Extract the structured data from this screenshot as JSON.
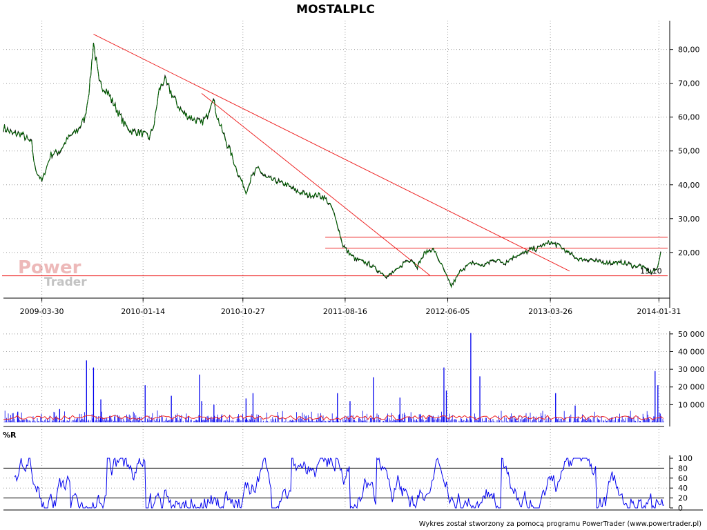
{
  "chart_data": [
    {
      "type": "line",
      "panel": "price",
      "title": "MOSTALPLC",
      "x_tick_labels": [
        "2009-03-30",
        "2010-01-14",
        "2010-10-27",
        "2011-08-16",
        "2012-06-05",
        "2013-03-26",
        "2014-01-31"
      ],
      "y_ticks": [
        20,
        30,
        40,
        50,
        60,
        70,
        80
      ],
      "y_tick_labels": [
        "20,00",
        "30,00",
        "40,00",
        "50,00",
        "60,00",
        "70,00",
        "80,00"
      ],
      "ylim": [
        6.5,
        88.5
      ],
      "xlim": [
        "2008-12-10",
        "2014-02-25"
      ],
      "series": [
        {
          "color": "#006400",
          "x": [
            "2008-12-10",
            "2009-01-05",
            "2009-02-01",
            "2009-03-01",
            "2009-03-10",
            "2009-03-30",
            "2009-04-25",
            "2009-05-20",
            "2009-06-15",
            "2009-07-10",
            "2009-08-01",
            "2009-08-15",
            "2009-08-25",
            "2009-09-10",
            "2009-10-01",
            "2009-11-01",
            "2009-11-20",
            "2009-12-10",
            "2010-01-14",
            "2010-02-01",
            "2010-02-15",
            "2010-03-01",
            "2010-03-15",
            "2010-04-01",
            "2010-04-20",
            "2010-05-10",
            "2010-06-01",
            "2010-06-15",
            "2010-06-28",
            "2010-07-15",
            "2010-08-01",
            "2010-08-15",
            "2010-09-01",
            "2010-09-20",
            "2010-10-15",
            "2010-11-05",
            "2010-11-20",
            "2010-12-10",
            "2011-01-01",
            "2011-02-01",
            "2011-03-01",
            "2011-04-01",
            "2011-05-01",
            "2011-06-01",
            "2011-06-20",
            "2011-07-10",
            "2011-07-25",
            "2011-08-10",
            "2011-08-25",
            "2011-09-15",
            "2011-10-15",
            "2011-11-15",
            "2011-12-15",
            "2012-01-15",
            "2012-02-01",
            "2012-02-20",
            "2012-03-10",
            "2012-04-01",
            "2012-04-25",
            "2012-05-15",
            "2012-06-01",
            "2012-06-15",
            "2012-07-15",
            "2012-08-15",
            "2012-09-15",
            "2012-10-15",
            "2012-11-15",
            "2012-12-15",
            "2013-01-15",
            "2013-02-01",
            "2013-02-15",
            "2013-03-01",
            "2013-03-26",
            "2013-04-20",
            "2013-05-15",
            "2013-06-15",
            "2013-07-15",
            "2013-08-15",
            "2013-09-15",
            "2013-10-01",
            "2013-10-20",
            "2013-11-20",
            "2013-12-10",
            "2013-12-25",
            "2014-01-10",
            "2014-01-25",
            "2014-02-05"
          ],
          "y": [
            57,
            55,
            55,
            52,
            45,
            41,
            49,
            50,
            54,
            56,
            60,
            70,
            82,
            70,
            68,
            62,
            58,
            56,
            55,
            54,
            58,
            68,
            71,
            68,
            64,
            61,
            60,
            59,
            58,
            60,
            66,
            60,
            55,
            50,
            43,
            38,
            42,
            45,
            42,
            41,
            40,
            38,
            37,
            37,
            36,
            33,
            28,
            22,
            20,
            18,
            17,
            15,
            13,
            15,
            17,
            18,
            16,
            20,
            21,
            17,
            13,
            10,
            15,
            17,
            16,
            18,
            17,
            19,
            20,
            21,
            21,
            22,
            23,
            22,
            20,
            18,
            18,
            17,
            17,
            17,
            17,
            16,
            16,
            15,
            14,
            15,
            20
          ]
        }
      ],
      "horizontal_lines": [
        {
          "y": 13.1,
          "color": "#ee2222"
        },
        {
          "y": 21.3,
          "color": "#ee2222"
        },
        {
          "y": 24.5,
          "color": "#ee2222"
        }
      ],
      "trend_lines": [
        {
          "x1": "2009-08-25",
          "y1": 84.5,
          "x2": "2013-05-20",
          "y2": 14.5,
          "color": "#ee2222"
        },
        {
          "x1": "2010-07-01",
          "y1": 67,
          "x2": "2012-04-15",
          "y2": 13.2,
          "color": "#ee2222"
        }
      ],
      "annotations": [
        {
          "x": "2013-12-20",
          "y": 13.1,
          "text": "13,10",
          "color": "#ee2222"
        }
      ]
    },
    {
      "type": "bar",
      "panel": "volume",
      "y_ticks": [
        10000,
        20000,
        30000,
        40000,
        50000
      ],
      "y_tick_labels": [
        "10 000",
        "20 000",
        "30 000",
        "40 000",
        "50 000"
      ],
      "ylim": [
        0,
        51500
      ],
      "bar_color": "#0000ee",
      "average_color": "#ee2222",
      "x": [
        "2009-01-20",
        "2009-05-20",
        "2009-08-05",
        "2009-08-25",
        "2009-09-15",
        "2010-01-20",
        "2010-04-05",
        "2010-06-25",
        "2010-07-01",
        "2010-08-05",
        "2010-11-05",
        "2010-11-25",
        "2011-07-25",
        "2011-08-30",
        "2011-11-05",
        "2012-01-20",
        "2012-05-25",
        "2012-06-01",
        "2012-08-10",
        "2012-09-05",
        "2013-04-10",
        "2013-06-05",
        "2014-01-20",
        "2014-01-28"
      ],
      "values": [
        6000,
        7500,
        35000,
        31000,
        13000,
        21000,
        15000,
        27000,
        12000,
        10000,
        13500,
        16500,
        16500,
        12000,
        25500,
        14000,
        31000,
        18000,
        50500,
        26000,
        16500,
        9500,
        29000,
        21000
      ]
    },
    {
      "type": "line",
      "panel": "indicator",
      "label": "%R",
      "y_ticks": [
        0,
        20,
        40,
        60,
        80,
        100
      ],
      "y_tick_labels": [
        "0",
        "20",
        "40",
        "60",
        "80",
        "100"
      ],
      "ylim": [
        0,
        100
      ],
      "reference_lines": [
        20,
        80
      ],
      "line_color": "#0000ee"
    }
  ],
  "footer": "Wykres został stworzony za pomocą programu PowerTrader (www.powertrader.pl)",
  "watermark": {
    "line1": "Power",
    "line2": "Trader"
  }
}
